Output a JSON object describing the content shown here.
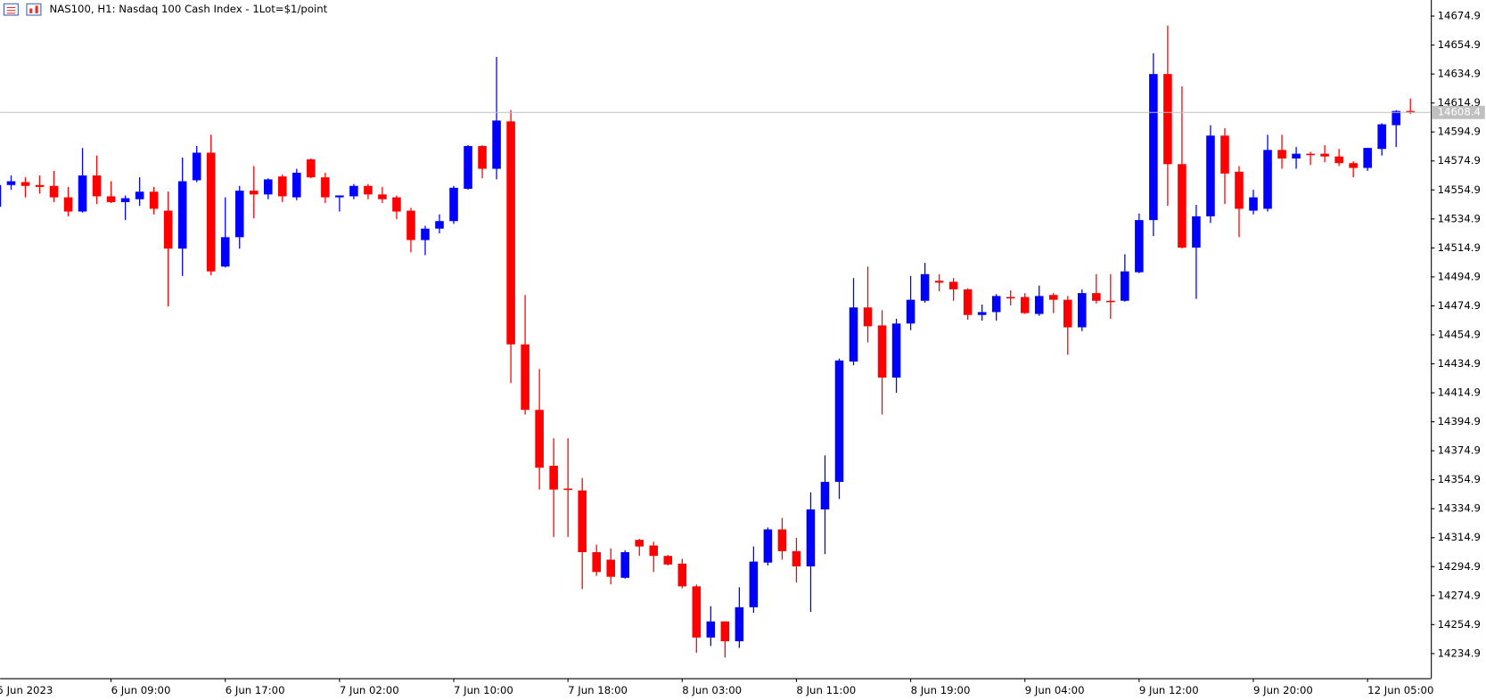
{
  "chart_data": {
    "type": "candlestick",
    "title": "NAS100, H1:  Nasdaq 100 Cash Index - 1Lot=$1/point",
    "categories": [
      "5 Jun 2023",
      null,
      null,
      null,
      null,
      null,
      null,
      null,
      "6 Jun 09:00",
      null,
      null,
      null,
      null,
      null,
      null,
      null,
      "6 Jun 17:00",
      null,
      null,
      null,
      null,
      null,
      null,
      null,
      "7 Jun 02:00",
      null,
      null,
      null,
      null,
      null,
      null,
      null,
      "7 Jun 10:00",
      null,
      null,
      null,
      null,
      null,
      null,
      null,
      "7 Jun 18:00",
      null,
      null,
      null,
      null,
      null,
      null,
      null,
      "8 Jun 03:00",
      null,
      null,
      null,
      null,
      null,
      null,
      null,
      "8 Jun 11:00",
      null,
      null,
      null,
      null,
      null,
      null,
      null,
      "8 Jun 19:00",
      null,
      null,
      null,
      null,
      null,
      null,
      null,
      "9 Jun 04:00",
      null,
      null,
      null,
      null,
      null,
      null,
      null,
      "9 Jun 12:00",
      null,
      null,
      null,
      null,
      null,
      null,
      null,
      "9 Jun 20:00",
      null,
      null,
      null,
      null,
      null,
      null,
      null,
      "12 Jun 05:00",
      null,
      null,
      null
    ],
    "open": [
      14543.3,
      14558.3,
      14560.3,
      14558.3,
      14557.7,
      14549.8,
      14540.0,
      14564.9,
      14550.5,
      14546.5,
      14548.5,
      14553.7,
      14540.6,
      14514.4,
      14561.6,
      14580.6,
      14502.0,
      14522.3,
      14554.4,
      14551.8,
      14564.2,
      14549.8,
      14576.0,
      14563.6,
      14549.8,
      14550.5,
      14557.7,
      14551.8,
      14549.8,
      14540.6,
      14520.3,
      14528.2,
      14533.4,
      14555.7,
      14585.2,
      14569.5,
      14602.2,
      14448.3,
      14403.1,
      14364.5,
      14348.8,
      14347.5,
      14304.9,
      14299.7,
      14287.2,
      14313.4,
      14309.5,
      14302.3,
      14297.0,
      14281.3,
      14246.0,
      14257.1,
      14243.4,
      14266.9,
      14297.7,
      14320.6,
      14305.6,
      14295.1,
      14334.4,
      14353.4,
      14436.5,
      14473.8,
      14461.4,
      14425.4,
      14462.7,
      14478.4,
      14492.2,
      14491.5,
      14486.3,
      14468.6,
      14470.6,
      14481.0,
      14481.0,
      14469.3,
      14482.4,
      14479.1,
      14460.1,
      14483.7,
      14478.4,
      14478.4,
      14498.1,
      14534.1,
      14634.9,
      14572.7,
      14515.1,
      14536.7,
      14592.4,
      14567.5,
      14540.6,
      14541.9,
      14582.5,
      14576.6,
      14579.9,
      14579.9,
      14578.0,
      14573.4,
      14570.1,
      14583.2,
      14599.6,
      14609.4
    ],
    "high": [
      14559.6,
      14564.9,
      14563.6,
      14564.9,
      14568.1,
      14557.0,
      14583.9,
      14578.6,
      14560.9,
      14551.1,
      14563.6,
      14557.0,
      14553.7,
      14577.3,
      14585.2,
      14593.0,
      14549.8,
      14557.7,
      14571.4,
      14562.9,
      14565.5,
      14569.5,
      14576.6,
      14566.8,
      14551.1,
      14559.0,
      14559.0,
      14557.0,
      14551.1,
      14542.6,
      14530.2,
      14538.0,
      14557.7,
      14585.8,
      14585.8,
      14646.7,
      14610.0,
      14482.4,
      14431.3,
      14383.5,
      14383.5,
      14356.0,
      14310.1,
      14307.5,
      14306.2,
      14314.1,
      14312.1,
      14303.0,
      14300.3,
      14282.6,
      14267.6,
      14257.1,
      14280.7,
      14308.8,
      14321.9,
      14328.5,
      14314.7,
      14346.2,
      14371.7,
      14438.5,
      14494.1,
      14502.0,
      14471.9,
      14466.0,
      14495.5,
      14504.6,
      14496.8,
      14494.1,
      14487.0,
      14475.8,
      14483.0,
      14485.6,
      14483.7,
      14488.9,
      14483.7,
      14481.7,
      14486.3,
      14496.8,
      14496.8,
      14510.5,
      14538.7,
      14649.3,
      14668.3,
      14626.4,
      14544.6,
      14599.6,
      14597.6,
      14571.4,
      14555.0,
      14593.0,
      14593.0,
      14584.5,
      14581.2,
      14585.8,
      14583.2,
      14574.7,
      14583.9,
      14600.9,
      14610.0,
      14618.0
    ],
    "low": [
      14541.9,
      14555.0,
      14549.8,
      14552.4,
      14546.5,
      14536.7,
      14539.3,
      14545.2,
      14545.9,
      14534.1,
      14543.9,
      14538.0,
      14474.5,
      14495.5,
      14560.3,
      14496.1,
      14501.4,
      14514.4,
      14535.4,
      14548.5,
      14546.5,
      14547.8,
      14562.9,
      14545.9,
      14540.0,
      14548.5,
      14548.5,
      14545.9,
      14534.7,
      14511.8,
      14509.9,
      14524.9,
      14531.5,
      14555.0,
      14562.9,
      14562.2,
      14421.5,
      14399.9,
      14348.1,
      14315.4,
      14315.4,
      14279.4,
      14288.5,
      14282.6,
      14286.6,
      14302.3,
      14291.2,
      14295.7,
      14280.0,
      14235.5,
      14240.1,
      14232.2,
      14238.8,
      14263.0,
      14295.7,
      14299.7,
      14284.0,
      14263.7,
      14303.6,
      14341.6,
      14433.9,
      14449.6,
      14399.9,
      14414.9,
      14458.1,
      14477.1,
      14485.0,
      14478.4,
      14465.3,
      14464.7,
      14464.7,
      14475.2,
      14469.3,
      14468.0,
      14469.9,
      14441.1,
      14457.5,
      14476.5,
      14466.0,
      14477.8,
      14497.4,
      14523.0,
      14543.9,
      14514.4,
      14479.7,
      14532.1,
      14545.2,
      14522.3,
      14538.0,
      14540.0,
      14569.5,
      14569.5,
      14572.1,
      14574.0,
      14571.4,
      14563.6,
      14568.1,
      14578.6,
      14584.5,
      14607.4
    ],
    "close": [
      14558.3,
      14560.9,
      14557.7,
      14557.0,
      14549.8,
      14540.0,
      14564.9,
      14550.5,
      14546.5,
      14549.2,
      14553.7,
      14541.9,
      14514.4,
      14560.9,
      14580.6,
      14498.7,
      14522.3,
      14554.4,
      14551.8,
      14562.2,
      14550.5,
      14566.8,
      14563.6,
      14549.8,
      14551.1,
      14557.7,
      14551.8,
      14548.5,
      14540.0,
      14520.3,
      14528.2,
      14533.4,
      14556.4,
      14585.2,
      14569.5,
      14602.8,
      14448.3,
      14403.1,
      14363.2,
      14348.1,
      14348.1,
      14304.9,
      14291.2,
      14287.9,
      14304.9,
      14308.8,
      14302.3,
      14296.4,
      14281.3,
      14246.0,
      14257.1,
      14243.4,
      14266.9,
      14298.4,
      14320.6,
      14305.6,
      14295.1,
      14334.4,
      14353.4,
      14437.2,
      14473.8,
      14460.8,
      14425.4,
      14462.7,
      14479.1,
      14496.8,
      14490.9,
      14486.3,
      14468.6,
      14470.6,
      14481.7,
      14480.4,
      14469.9,
      14481.7,
      14479.1,
      14460.1,
      14483.7,
      14478.4,
      14477.8,
      14498.7,
      14534.1,
      14634.9,
      14572.7,
      14515.1,
      14536.7,
      14592.4,
      14566.2,
      14541.9,
      14549.8,
      14582.5,
      14576.6,
      14579.9,
      14579.3,
      14578.0,
      14573.4,
      14570.1,
      14583.9,
      14600.2,
      14609.4,
      14608.4
    ],
    "up_color": "#0000ff",
    "down_color": "#ff0000",
    "current_price": 14608.4,
    "current_price_color": "#c0c0c0",
    "ylim": [
      14217.9,
      14686.0
    ],
    "yticks": [
      14674.9,
      14654.9,
      14634.9,
      14614.9,
      14594.9,
      14574.9,
      14554.9,
      14534.9,
      14514.9,
      14494.9,
      14474.9,
      14454.9,
      14434.9,
      14414.9,
      14394.9,
      14374.9,
      14354.9,
      14334.9,
      14314.9,
      14294.9,
      14274.9,
      14254.9,
      14234.9
    ],
    "grid": false
  }
}
